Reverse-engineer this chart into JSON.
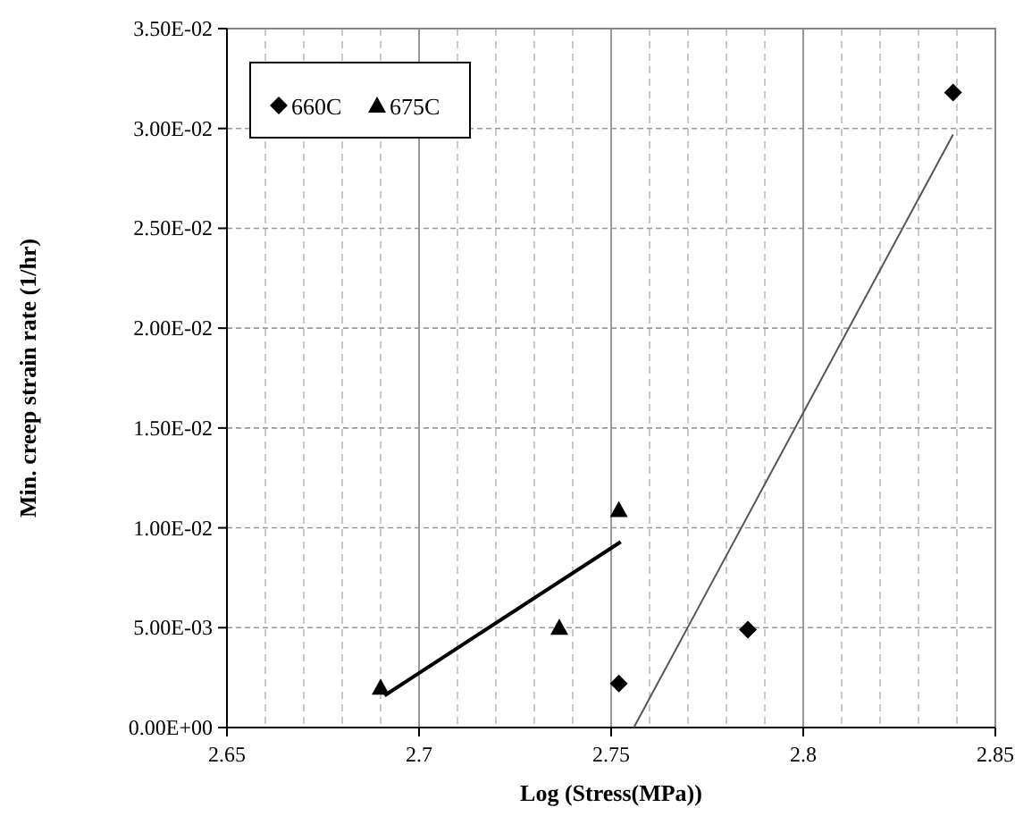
{
  "chart_data": {
    "type": "scatter",
    "xlabel": "Log (Stress(MPa))",
    "ylabel": "Min. creep strain rate (1/hr)",
    "xlim": [
      2.65,
      2.85
    ],
    "xticks": [
      2.65,
      2.7,
      2.75,
      2.8,
      2.85
    ],
    "ylim": [
      0,
      0.035
    ],
    "yticks": [
      {
        "value": 0,
        "label": "0.00E+00"
      },
      {
        "value": 0.005,
        "label": "5.00E-03"
      },
      {
        "value": 0.01,
        "label": "1.00E-02"
      },
      {
        "value": 0.015,
        "label": "1.50E-02"
      },
      {
        "value": 0.02,
        "label": "2.00E-02"
      },
      {
        "value": 0.025,
        "label": "2.50E-02"
      },
      {
        "value": 0.03,
        "label": "3.00E-02"
      },
      {
        "value": 0.035,
        "label": "3.50E-02"
      }
    ],
    "grid": true,
    "legend": "top left",
    "series": [
      {
        "name": "660C",
        "color": "#000000",
        "marker": "diamond",
        "x": [
          2.752,
          2.7856,
          2.839
        ],
        "values": [
          0.0022,
          0.0049,
          0.0318
        ]
      },
      {
        "name": "675C",
        "color": "#000000",
        "marker": "triangle",
        "x": [
          2.69,
          2.7365,
          2.752
        ],
        "values": [
          0.002,
          0.005,
          0.0109
        ]
      },
      {
        "type": "line",
        "color": "#000000",
        "marker": "none",
        "x": [
          2.691,
          2.7525
        ],
        "values": [
          0.0016,
          0.0093
        ]
      },
      {
        "type": "line",
        "color": "#555555",
        "marker": "none",
        "x": [
          2.7559,
          2.839
        ],
        "values": [
          0,
          0.0297
        ]
      }
    ]
  }
}
